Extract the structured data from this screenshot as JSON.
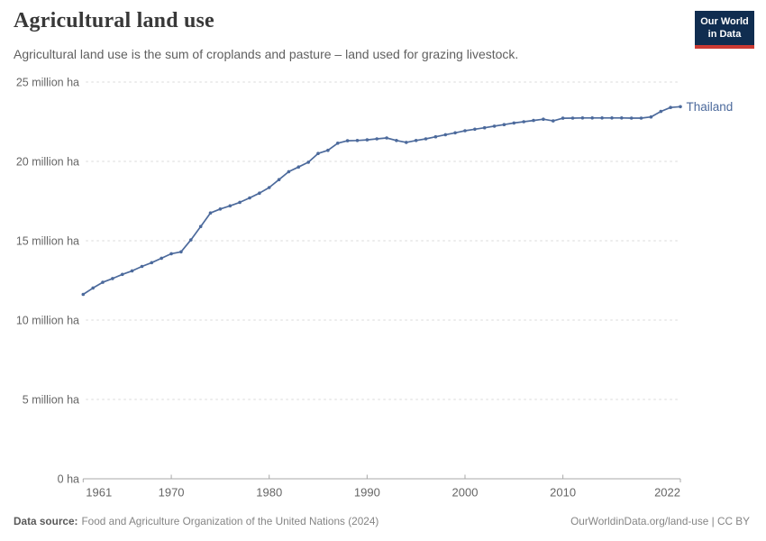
{
  "header": {
    "title": "Agricultural land use",
    "subtitle": "Agricultural land use is the sum of croplands and pasture – land used for grazing livestock.",
    "logo": {
      "line1": "Our World",
      "line2": "in Data"
    }
  },
  "chart_data": {
    "type": "line",
    "title": "Agricultural land use",
    "subtitle": "Agricultural land use is the sum of croplands and pasture – land used for grazing livestock.",
    "unit": "million ha",
    "xlabel": "",
    "ylabel": "",
    "xlim": [
      1961,
      2022
    ],
    "ylim": [
      0,
      25
    ],
    "grid": "horizontal-dashed",
    "legend_position": "end-of-line-label",
    "entity_label": "Thailand",
    "x_ticks": [
      1961,
      1970,
      1980,
      1990,
      2000,
      2010,
      2022
    ],
    "y_ticks": [
      {
        "value": 0,
        "label": "0 ha"
      },
      {
        "value": 5,
        "label": "5 million ha"
      },
      {
        "value": 10,
        "label": "10 million ha"
      },
      {
        "value": 15,
        "label": "15 million ha"
      },
      {
        "value": 20,
        "label": "20 million ha"
      },
      {
        "value": 25,
        "label": "25 million ha"
      }
    ],
    "x": [
      1961,
      1962,
      1963,
      1964,
      1965,
      1966,
      1967,
      1968,
      1969,
      1970,
      1971,
      1972,
      1973,
      1974,
      1975,
      1976,
      1977,
      1978,
      1979,
      1980,
      1981,
      1982,
      1983,
      1984,
      1985,
      1986,
      1987,
      1988,
      1989,
      1990,
      1991,
      1992,
      1993,
      1994,
      1995,
      1996,
      1997,
      1998,
      1999,
      2000,
      2001,
      2002,
      2003,
      2004,
      2005,
      2006,
      2007,
      2008,
      2009,
      2010,
      2011,
      2012,
      2013,
      2014,
      2015,
      2016,
      2017,
      2018,
      2019,
      2020,
      2021,
      2022
    ],
    "series": [
      {
        "name": "Thailand",
        "values": [
          11.62,
          12.02,
          12.38,
          12.62,
          12.88,
          13.1,
          13.38,
          13.62,
          13.9,
          14.18,
          14.3,
          15.05,
          15.9,
          16.75,
          17.0,
          17.2,
          17.42,
          17.7,
          18.0,
          18.35,
          18.85,
          19.35,
          19.65,
          19.95,
          20.5,
          20.7,
          21.15,
          21.3,
          21.32,
          21.36,
          21.42,
          21.48,
          21.32,
          21.2,
          21.32,
          21.42,
          21.55,
          21.68,
          21.8,
          21.93,
          22.03,
          22.12,
          22.22,
          22.32,
          22.42,
          22.5,
          22.58,
          22.66,
          22.55,
          22.72,
          22.73,
          22.74,
          22.74,
          22.74,
          22.74,
          22.74,
          22.73,
          22.73,
          22.8,
          23.15,
          23.4,
          23.45
        ]
      }
    ],
    "colors": {
      "line": "#4C6A9C",
      "grid": "#d9d9d9",
      "axis": "#a8a8a8",
      "tick_text": "#666666"
    }
  },
  "footer": {
    "source_label": "Data source:",
    "source_text": "Food and Agriculture Organization of the United Nations (2024)",
    "credit": "OurWorldinData.org/land-use | CC BY"
  },
  "colors": {
    "title_text": "#383838",
    "subtitle_text": "#5f5f5f",
    "footer_text": "#858585",
    "logo_background": "#102d50",
    "logo_red_bar": "#cc3a33"
  }
}
